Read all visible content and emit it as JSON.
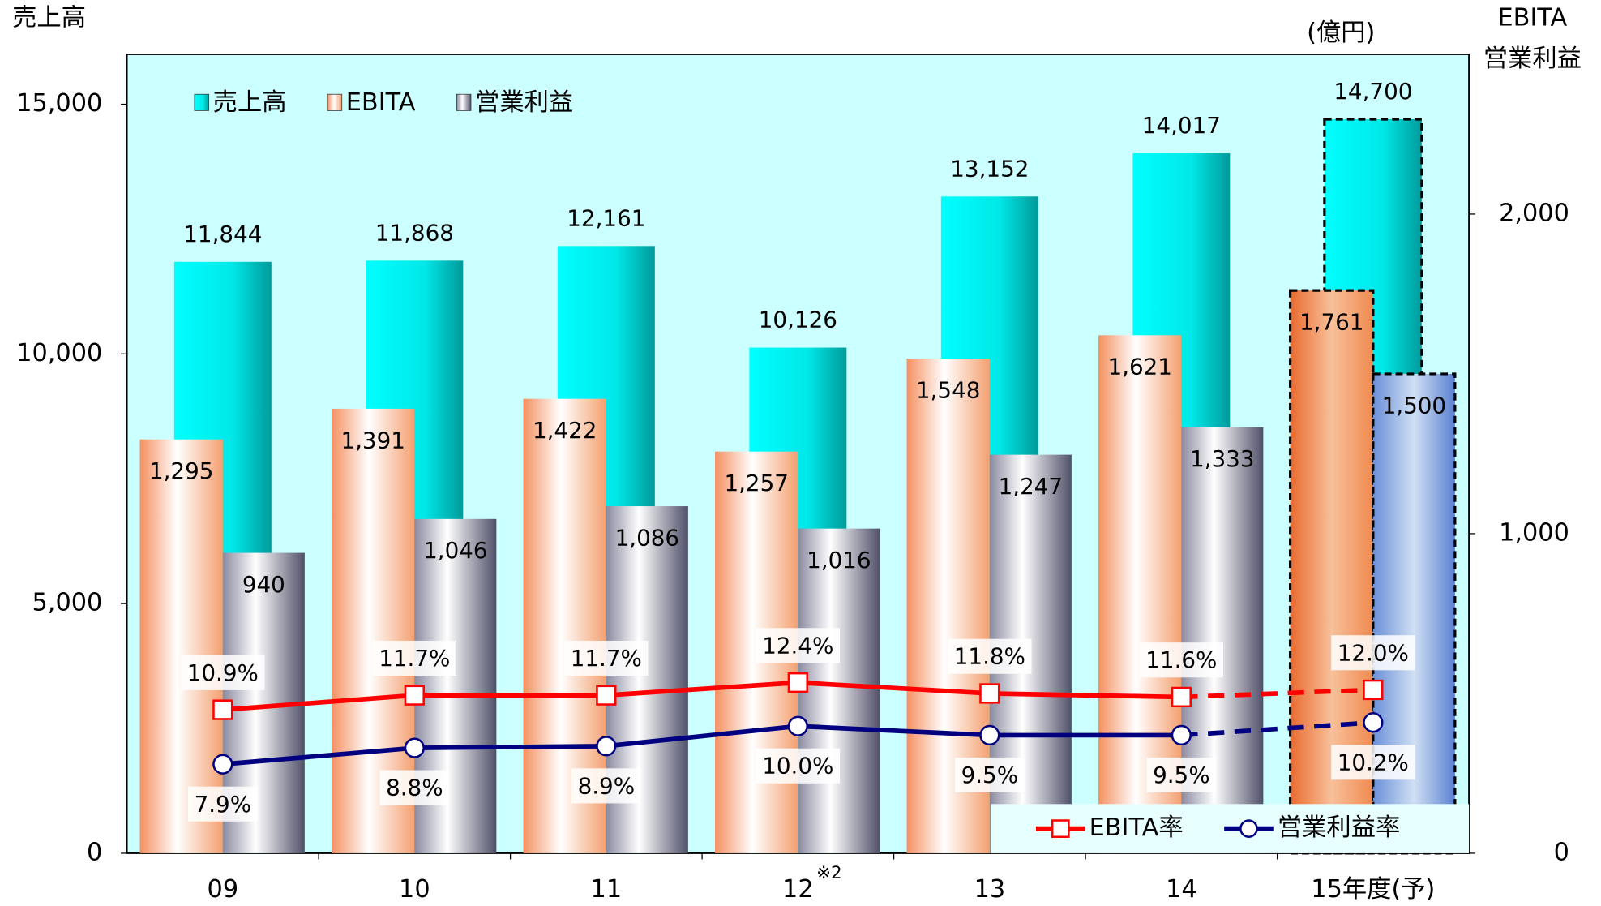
{
  "chart_data": {
    "type": "bar_line",
    "ylabel": "売上高",
    "y2label": [
      "EBITA",
      "営業利益"
    ],
    "unit": "(億円)",
    "categories": [
      "09",
      "10",
      "11",
      "12",
      "13",
      "14",
      "15年度(予)"
    ],
    "annotations": [
      {
        "category": "12",
        "text": "※2"
      }
    ],
    "forecast": [
      false,
      false,
      false,
      false,
      false,
      false,
      true
    ],
    "ylim": [
      0,
      16000
    ],
    "yticks": [
      0,
      {
        "value": 5000,
        "label": "5,000"
      },
      {
        "value": 10000,
        "label": "10,000"
      },
      {
        "value": 15000,
        "label": "15,000"
      }
    ],
    "y2lim": [
      0,
      2500
    ],
    "y2ticks": [
      0,
      {
        "value": 1000,
        "label": "1,000"
      },
      {
        "value": 2000,
        "label": "2,000"
      }
    ],
    "y3lim": [
      3,
      47
    ],
    "series": [
      {
        "name": "売上高",
        "kind": "bar",
        "color": "#00e0e0",
        "values": [
          11844,
          11868,
          12161,
          10126,
          13152,
          14017,
          14700
        ],
        "value_labels": [
          "11,844",
          "11,868",
          "12,161",
          "10,126",
          "13,152",
          "14,017",
          "14,700"
        ]
      },
      {
        "name": "EBITA",
        "kind": "bar",
        "axis": "y2",
        "color": "#f4a070",
        "values": [
          1295,
          1391,
          1422,
          1257,
          1548,
          1621,
          1761
        ],
        "value_labels": [
          "1,295",
          "1,391",
          "1,422",
          "1,257",
          "1,548",
          "1,621",
          "1,761"
        ]
      },
      {
        "name": "営業利益",
        "kind": "bar",
        "axis": "y2",
        "color": "#70708a",
        "values": [
          940,
          1046,
          1086,
          1016,
          1247,
          1333,
          1500
        ],
        "value_labels": [
          "940",
          "1,046",
          "1,086",
          "1,016",
          "1,247",
          "1,333",
          "1,500"
        ]
      },
      {
        "name": "EBITA率",
        "kind": "line",
        "axis": "y3",
        "color": "#ff0000",
        "marker": "square",
        "values": [
          10.9,
          11.7,
          11.7,
          12.4,
          11.8,
          11.6,
          12.0
        ],
        "value_labels": [
          "10.9%",
          "11.7%",
          "11.7%",
          "12.4%",
          "11.8%",
          "11.6%",
          "12.0%"
        ]
      },
      {
        "name": "営業利益率",
        "kind": "line",
        "axis": "y3",
        "color": "#000080",
        "marker": "circle",
        "values": [
          7.9,
          8.8,
          8.9,
          10.0,
          9.5,
          9.5,
          10.2
        ],
        "value_labels": [
          "7.9%",
          "8.8%",
          "8.9%",
          "10.0%",
          "9.5%",
          "9.5%",
          "10.2%"
        ]
      }
    ]
  }
}
